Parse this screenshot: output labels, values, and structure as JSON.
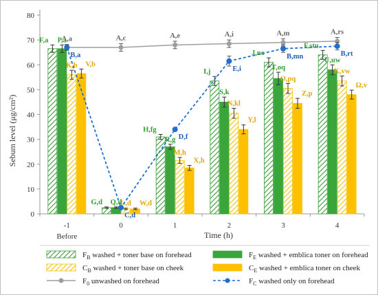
{
  "chart_data": {
    "type": "bar",
    "ylabel": "Sebum level (μg/cm²)",
    "xlabel": "Time (h)",
    "ylim": [
      0,
      80
    ],
    "yticks": [
      "0",
      "10",
      "20",
      "30",
      "40",
      "50",
      "60",
      "70",
      "80"
    ],
    "categories": [
      "-1",
      "0",
      "1",
      "2",
      "3",
      "4"
    ],
    "category_sublabels": [
      "Before",
      "",
      "",
      "",
      "",
      ""
    ],
    "grid": false,
    "colors": {
      "fb": "#3a9a3a",
      "fe": "#3aa53a",
      "cb": "#f2c200",
      "ce": "#ffc000",
      "f0": "#9e9e9e",
      "fc": "#1f6fd1",
      "label_green": "#2e9e2e",
      "label_yellow": "#e0a800",
      "label_gray": "#666666",
      "label_blue": "#1f5fb3"
    },
    "series": [
      {
        "key": "fb",
        "legend_main": "F",
        "legend_sub": "B",
        "legend_rest": " washed + toner base on forehead",
        "style": "hatch-green",
        "values": [
          66.5,
          2.5,
          31,
          53.5,
          61,
          64
        ],
        "errors": [
          1.5,
          0.3,
          1.0,
          1.8,
          1.8,
          1.8
        ],
        "labels": [
          "F,a",
          "G,d",
          "H,fg",
          "I,j",
          "J,no",
          "F,stu"
        ]
      },
      {
        "key": "fe",
        "legend_main": "F",
        "legend_sub": "E",
        "legend_rest": " washed + emblica toner on forehead",
        "style": "solid-green",
        "values": [
          66.5,
          2.5,
          27,
          45,
          54.5,
          58
        ],
        "errors": [
          1.5,
          0.3,
          1.0,
          2.0,
          2.5,
          2.0
        ],
        "labels": [
          "P,a",
          "Q,d",
          "R,g",
          "S,k",
          "T,oq",
          "U,uw"
        ]
      },
      {
        "key": "cb",
        "legend_main": "C",
        "legend_sub": "B",
        "legend_rest": " washed + toner base on cheek",
        "style": "hatch-yellow",
        "values": [
          56,
          2,
          21.5,
          40.5,
          50.5,
          53.5
        ],
        "errors": [
          1.8,
          0.3,
          1.2,
          2.0,
          2.0,
          2.0
        ],
        "labels": [
          "K,b",
          "L,d",
          "M,h",
          "N,kl",
          "O,pq",
          "K,vw"
        ]
      },
      {
        "key": "ce",
        "legend_main": "C",
        "legend_sub": "E",
        "legend_rest": " washed + emblica toner on cheek",
        "style": "solid-yellow",
        "values": [
          56.5,
          2,
          18.5,
          34,
          44.5,
          48
        ],
        "errors": [
          1.8,
          0.3,
          1.0,
          1.8,
          2.0,
          1.8
        ],
        "labels": [
          "V,b",
          "W,d",
          "X,h",
          "Y,l",
          "Z,p",
          "Ω,v"
        ]
      },
      {
        "key": "f0",
        "legend_main": "F",
        "legend_sub": "0",
        "legend_rest": " unwashed on forehead",
        "style": "line-gray",
        "values": [
          67,
          67,
          68,
          68.5,
          69,
          69.5
        ],
        "errors": [
          1.2,
          1.5,
          1.5,
          1.5,
          1.5,
          1.5
        ],
        "labels": [
          "A,a",
          "A,c",
          "A,e",
          "A,i",
          "A,m",
          "A,rs"
        ]
      },
      {
        "key": "fc",
        "legend_main": "F",
        "legend_sub": "C",
        "legend_rest": " washed only on forehead",
        "style": "line-blue-dashed",
        "values": [
          67,
          2.5,
          34,
          61.5,
          66.5,
          67.5
        ],
        "errors": [
          1.0,
          0.3,
          0.5,
          2.0,
          1.5,
          1.5
        ],
        "labels": [
          "B,a",
          "C,d",
          "D,f",
          "E,i",
          "B,mn",
          "B,rt"
        ]
      }
    ]
  }
}
